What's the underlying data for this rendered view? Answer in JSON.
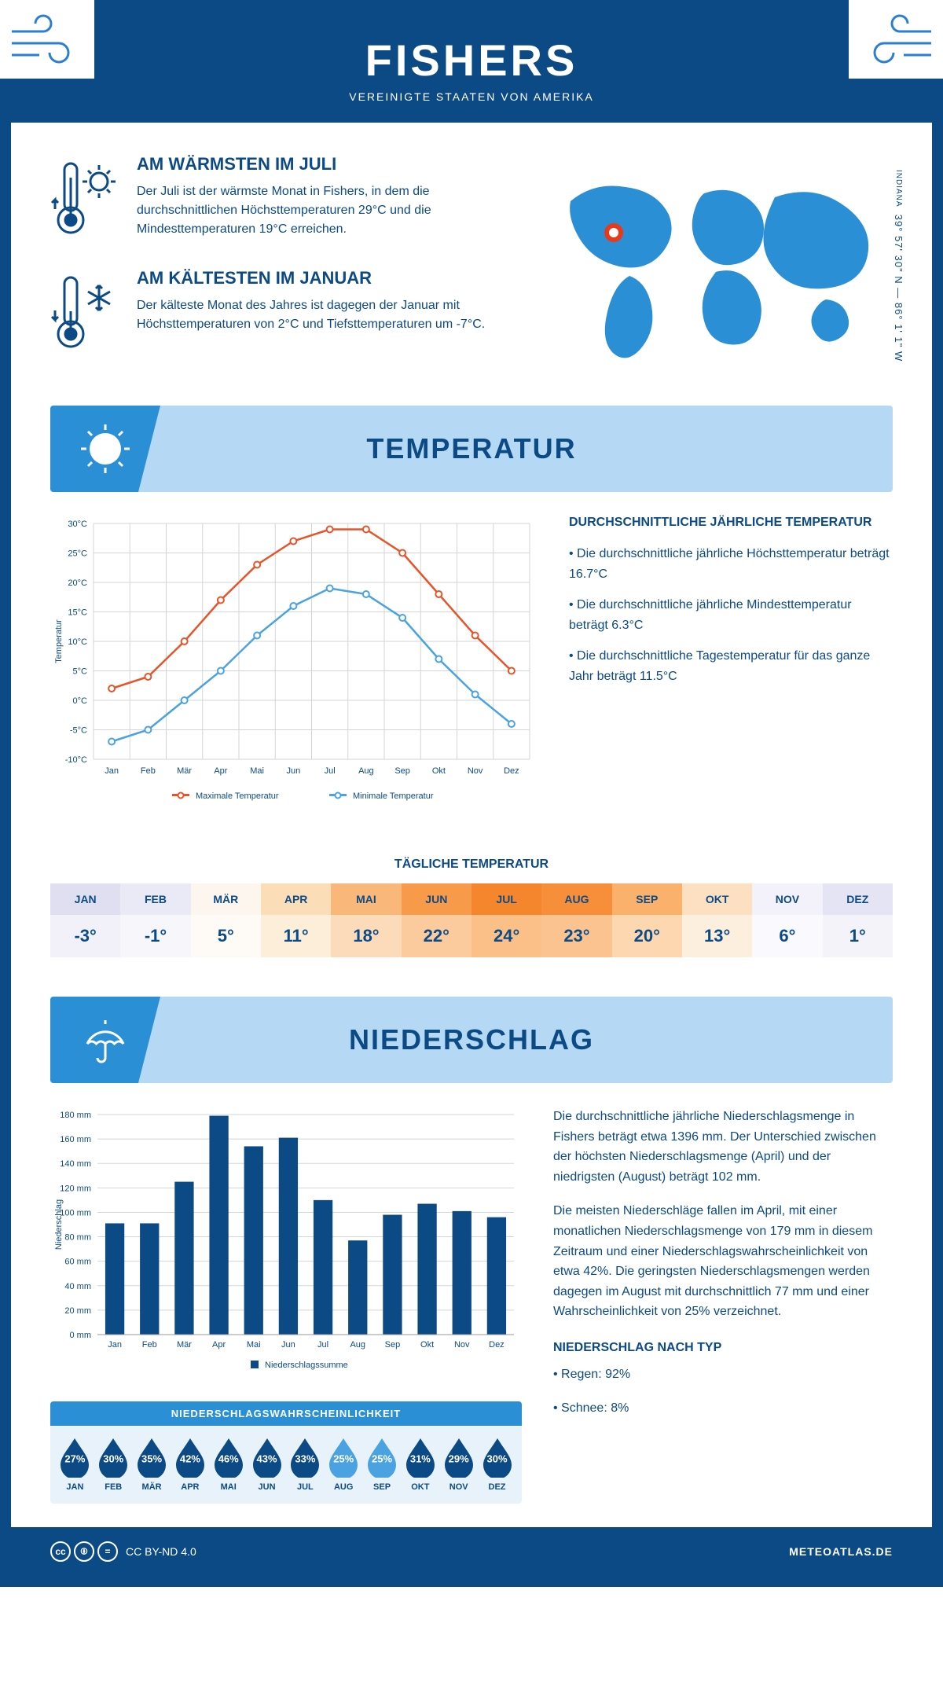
{
  "header": {
    "title": "FISHERS",
    "subtitle": "VEREINIGTE STAATEN VON AMERIKA"
  },
  "coords": {
    "text": "39° 57' 30\" N — 86° 1' 1\" W",
    "state": "INDIANA"
  },
  "warmest": {
    "title": "AM WÄRMSTEN IM JULI",
    "text": "Der Juli ist der wärmste Monat in Fishers, in dem die durchschnittlichen Höchsttemperaturen 29°C und die Mindesttemperaturen 19°C erreichen."
  },
  "coldest": {
    "title": "AM KÄLTESTEN IM JANUAR",
    "text": "Der kälteste Monat des Jahres ist dagegen der Januar mit Höchsttemperaturen von 2°C und Tiefsttemperaturen um -7°C."
  },
  "sections": {
    "temp": "TEMPERATUR",
    "precip": "NIEDERSCHLAG"
  },
  "temp_chart": {
    "type": "line",
    "months": [
      "Jan",
      "Feb",
      "Mär",
      "Apr",
      "Mai",
      "Jun",
      "Jul",
      "Aug",
      "Sep",
      "Okt",
      "Nov",
      "Dez"
    ],
    "max": [
      2,
      4,
      10,
      17,
      23,
      27,
      29,
      29,
      25,
      18,
      11,
      5
    ],
    "min": [
      -7,
      -5,
      0,
      5,
      11,
      16,
      19,
      18,
      14,
      7,
      1,
      -4
    ],
    "max_color": "#e8542a",
    "min_color": "#4aa3e0",
    "grid_color": "#d5d5d5",
    "ylim": [
      -10,
      30
    ],
    "ytick_step": 5,
    "ylabel": "Temperatur",
    "legend_max": "Maximale Temperatur",
    "legend_min": "Minimale Temperatur"
  },
  "temp_text": {
    "heading": "DURCHSCHNITTLICHE JÄHRLICHE TEMPERATUR",
    "b1": "• Die durchschnittliche jährliche Höchsttemperatur beträgt 16.7°C",
    "b2": "• Die durchschnittliche jährliche Mindesttemperatur beträgt 6.3°C",
    "b3": "• Die durchschnittliche Tagestemperatur für das ganze Jahr beträgt 11.5°C"
  },
  "daily": {
    "title": "TÄGLICHE TEMPERATUR",
    "months": [
      "JAN",
      "FEB",
      "MÄR",
      "APR",
      "MAI",
      "JUN",
      "JUL",
      "AUG",
      "SEP",
      "OKT",
      "NOV",
      "DEZ"
    ],
    "values": [
      "-3°",
      "-1°",
      "5°",
      "11°",
      "18°",
      "22°",
      "24°",
      "23°",
      "20°",
      "13°",
      "6°",
      "1°"
    ],
    "head_colors": [
      "#e0dff2",
      "#eae9f6",
      "#fdf6ef",
      "#fbddb8",
      "#f9b77a",
      "#f79a4a",
      "#f5862e",
      "#f68e3a",
      "#f9b16b",
      "#fce0c1",
      "#f3f2fa",
      "#e5e4f4"
    ],
    "val_colors": [
      "#f2f1f9",
      "#f7f6fb",
      "#fefbf7",
      "#fdeed9",
      "#fcdbbb",
      "#fbcb9d",
      "#fac088",
      "#fac38f",
      "#fcd7b0",
      "#fdefdd",
      "#faf9fd",
      "#f4f3fa"
    ],
    "text_color": "#0c4a85"
  },
  "precip_chart": {
    "type": "bar",
    "months": [
      "Jan",
      "Feb",
      "Mär",
      "Apr",
      "Mai",
      "Jun",
      "Jul",
      "Aug",
      "Sep",
      "Okt",
      "Nov",
      "Dez"
    ],
    "values": [
      91,
      91,
      125,
      179,
      154,
      161,
      110,
      77,
      98,
      107,
      101,
      96
    ],
    "bar_color": "#0c4a85",
    "grid_color": "#d5d5d5",
    "ylim": [
      0,
      180
    ],
    "ytick_step": 20,
    "ylabel": "Niederschlag",
    "legend": "Niederschlagssumme"
  },
  "precip_text": {
    "p1": "Die durchschnittliche jährliche Niederschlagsmenge in Fishers beträgt etwa 1396 mm. Der Unterschied zwischen der höchsten Niederschlagsmenge (April) und der niedrigsten (August) beträgt 102 mm.",
    "p2": "Die meisten Niederschläge fallen im April, mit einer monatlichen Niederschlagsmenge von 179 mm in diesem Zeitraum und einer Niederschlagswahrscheinlichkeit von etwa 42%. Die geringsten Niederschlagsmengen werden dagegen im August mit durchschnittlich 77 mm und einer Wahrscheinlichkeit von 25% verzeichnet.",
    "type_heading": "NIEDERSCHLAG NACH TYP",
    "type_1": "• Regen: 92%",
    "type_2": "• Schnee: 8%"
  },
  "prob": {
    "title": "NIEDERSCHLAGSWAHRSCHEINLICHKEIT",
    "months": [
      "JAN",
      "FEB",
      "MÄR",
      "APR",
      "MAI",
      "JUN",
      "JUL",
      "AUG",
      "SEP",
      "OKT",
      "NOV",
      "DEZ"
    ],
    "pct": [
      "27%",
      "30%",
      "35%",
      "42%",
      "46%",
      "43%",
      "33%",
      "25%",
      "25%",
      "31%",
      "29%",
      "30%"
    ],
    "colors": [
      "#0c4a85",
      "#0c4a85",
      "#0c4a85",
      "#0c4a85",
      "#0c4a85",
      "#0c4a85",
      "#0c4a85",
      "#4aa3e0",
      "#4aa3e0",
      "#0c4a85",
      "#0c4a85",
      "#0c4a85"
    ]
  },
  "footer": {
    "license": "CC BY-ND 4.0",
    "brand": "METEOATLAS.DE"
  }
}
